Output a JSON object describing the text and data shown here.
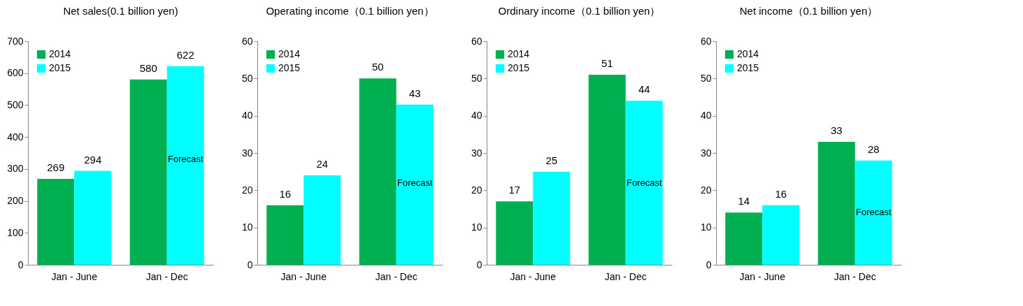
{
  "chart_data": [
    {
      "type": "bar",
      "title": "Net sales(0.1 billion yen)",
      "categories": [
        "Jan - June",
        "Jan - Dec"
      ],
      "series": [
        {
          "name": "2014",
          "color": "#00b050",
          "values": [
            269,
            580
          ]
        },
        {
          "name": "2015",
          "color": "#00ffff",
          "values": [
            294,
            622
          ]
        }
      ],
      "ylim": [
        0,
        700
      ],
      "yticks": [
        0,
        100,
        200,
        300,
        400,
        500,
        600,
        700
      ],
      "data_labels": true,
      "grid": false,
      "legend": "top left",
      "annotations": [
        {
          "text": "Forecast",
          "x": "Jan - Dec",
          "y": 330
        }
      ]
    },
    {
      "type": "bar",
      "title": "Operating income（0.1 billion yen）",
      "categories": [
        "Jan - June",
        "Jan - Dec"
      ],
      "series": [
        {
          "name": "2014",
          "color": "#00b050",
          "values": [
            16,
            50
          ]
        },
        {
          "name": "2015",
          "color": "#00ffff",
          "values": [
            24,
            43
          ]
        }
      ],
      "ylim": [
        0,
        60
      ],
      "yticks": [
        0,
        10,
        20,
        30,
        40,
        50,
        60
      ],
      "data_labels": true,
      "grid": false,
      "legend": "top left",
      "annotations": [
        {
          "text": "Forecast",
          "x": "Jan - Dec",
          "y": 22
        }
      ]
    },
    {
      "type": "bar",
      "title": "Ordinary income（0.1 billion yen）",
      "categories": [
        "Jan - June",
        "Jan - Dec"
      ],
      "series": [
        {
          "name": "2014",
          "color": "#00b050",
          "values": [
            17,
            51
          ]
        },
        {
          "name": "2015",
          "color": "#00ffff",
          "values": [
            25,
            44
          ]
        }
      ],
      "ylim": [
        0,
        60
      ],
      "yticks": [
        0,
        10,
        20,
        30,
        40,
        50,
        60
      ],
      "data_labels": true,
      "grid": false,
      "legend": "top left",
      "annotations": [
        {
          "text": "Forecast",
          "x": "Jan - Dec",
          "y": 22
        }
      ]
    },
    {
      "type": "bar",
      "title": "Net income（0.1 billion yen）",
      "categories": [
        "Jan - June",
        "Jan - Dec"
      ],
      "series": [
        {
          "name": "2014",
          "color": "#00b050",
          "values": [
            14,
            33
          ]
        },
        {
          "name": "2015",
          "color": "#00ffff",
          "values": [
            16,
            28
          ]
        }
      ],
      "ylim": [
        0,
        60
      ],
      "yticks": [
        0,
        10,
        20,
        30,
        40,
        50,
        60
      ],
      "data_labels": true,
      "grid": false,
      "legend": "top left",
      "annotations": [
        {
          "text": "Forecast",
          "x": "Jan - Dec",
          "y": 14
        }
      ]
    }
  ]
}
